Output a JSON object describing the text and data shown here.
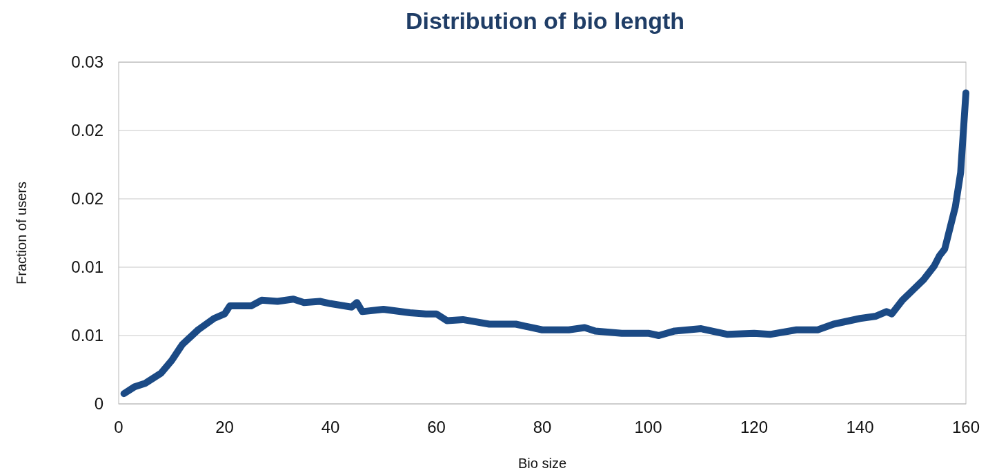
{
  "chart_data": {
    "type": "line",
    "title": "Distribution of bio length",
    "xlabel": "Bio size",
    "ylabel": "Fraction of users",
    "x": [
      1,
      3,
      5,
      8,
      10,
      12,
      15,
      18,
      20,
      21,
      25,
      27,
      30,
      33,
      35,
      38,
      40,
      44,
      45,
      46,
      50,
      55,
      58,
      60,
      62,
      65,
      70,
      75,
      80,
      85,
      88,
      90,
      95,
      100,
      102,
      105,
      110,
      115,
      120,
      123,
      128,
      132,
      135,
      140,
      143,
      145,
      146,
      148,
      150,
      152,
      154,
      155,
      156,
      158,
      159,
      160
    ],
    "series": [
      {
        "color": "#1b4a85",
        "values": [
          0.0009,
          0.0015,
          0.0018,
          0.0027,
          0.0038,
          0.0052,
          0.0065,
          0.0075,
          0.0079,
          0.0086,
          0.0086,
          0.0091,
          0.009,
          0.0092,
          0.0089,
          0.009,
          0.0088,
          0.0085,
          0.0089,
          0.0081,
          0.0083,
          0.008,
          0.0079,
          0.0079,
          0.0073,
          0.0074,
          0.007,
          0.007,
          0.0065,
          0.0065,
          0.0067,
          0.0064,
          0.0062,
          0.0062,
          0.006,
          0.0064,
          0.0066,
          0.0061,
          0.0062,
          0.0061,
          0.0065,
          0.0065,
          0.007,
          0.0075,
          0.0077,
          0.0081,
          0.0079,
          0.0091,
          0.01,
          0.0109,
          0.0121,
          0.013,
          0.0136,
          0.0173,
          0.0203,
          0.0273
        ]
      }
    ],
    "xlim": [
      0,
      160
    ],
    "xticks": [
      0,
      20,
      40,
      60,
      80,
      100,
      120,
      140,
      160
    ],
    "ylim": [
      0,
      0.03
    ],
    "yticks": [
      0,
      {
        "value": 0.006,
        "label": "0.01"
      },
      {
        "value": 0.012,
        "label": "0.01"
      },
      {
        "value": 0.018,
        "label": "0.02"
      },
      {
        "value": 0.024,
        "label": "0.02"
      },
      0.03
    ],
    "grid": "y",
    "marker": "none",
    "line_style": "solid"
  }
}
